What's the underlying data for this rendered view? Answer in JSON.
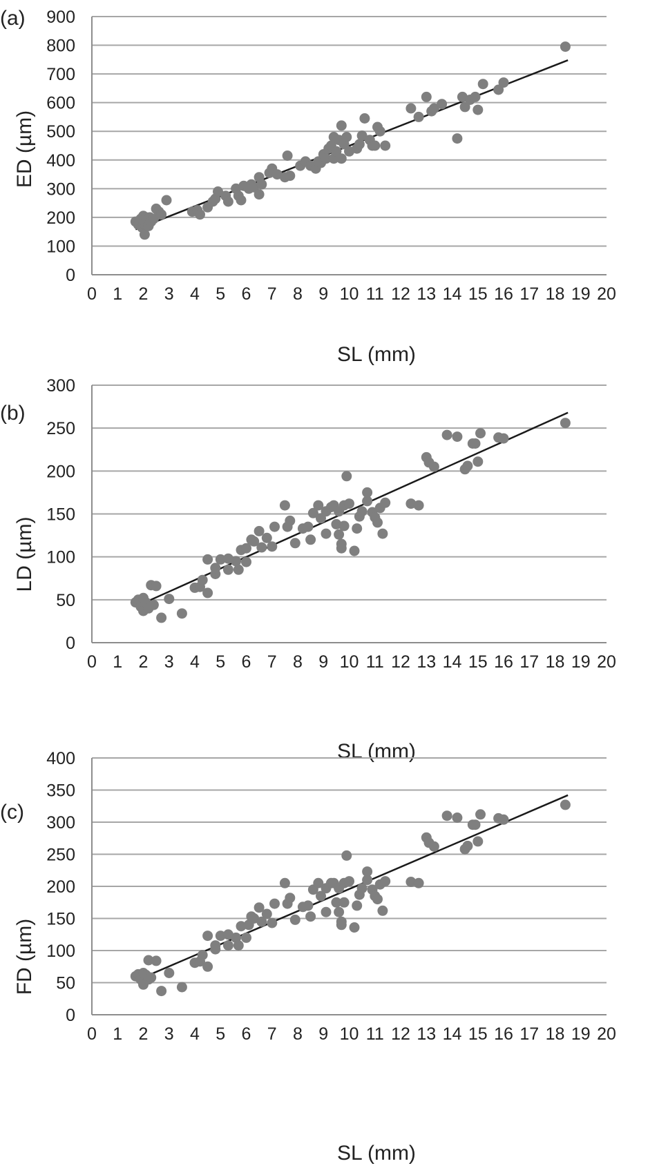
{
  "chart_data": [
    {
      "type": "scatter",
      "panel_label": "(a)",
      "xlabel": "SL (mm)",
      "ylabel": "ED (µm)",
      "xlim": [
        0,
        20
      ],
      "ylim": [
        0,
        900
      ],
      "xticks": [
        0,
        1,
        2,
        3,
        4,
        5,
        6,
        7,
        8,
        9,
        10,
        11,
        12,
        13,
        14,
        15,
        16,
        17,
        18,
        19,
        20
      ],
      "yticks": [
        0,
        100,
        200,
        300,
        400,
        500,
        600,
        700,
        800,
        900
      ],
      "grid": "horizontal",
      "point_color": "#7f7f7f",
      "line_color": "#1a1a1a",
      "trendline": [
        [
          1.7,
          158
        ],
        [
          18.5,
          748
        ]
      ],
      "points": [
        [
          1.7,
          185
        ],
        [
          1.8,
          175
        ],
        [
          1.9,
          195
        ],
        [
          1.95,
          165
        ],
        [
          2.0,
          205
        ],
        [
          2.0,
          180
        ],
        [
          2.05,
          140
        ],
        [
          2.1,
          200
        ],
        [
          2.1,
          175
        ],
        [
          2.15,
          190
        ],
        [
          2.2,
          170
        ],
        [
          2.25,
          200
        ],
        [
          2.3,
          185
        ],
        [
          2.4,
          195
        ],
        [
          2.5,
          230
        ],
        [
          2.6,
          220
        ],
        [
          2.7,
          210
        ],
        [
          2.9,
          260
        ],
        [
          3.9,
          220
        ],
        [
          4.1,
          225
        ],
        [
          4.2,
          210
        ],
        [
          4.5,
          235
        ],
        [
          4.7,
          255
        ],
        [
          4.8,
          265
        ],
        [
          4.9,
          290
        ],
        [
          5.2,
          275
        ],
        [
          5.3,
          255
        ],
        [
          5.6,
          300
        ],
        [
          5.7,
          275
        ],
        [
          5.8,
          260
        ],
        [
          5.9,
          310
        ],
        [
          6.1,
          300
        ],
        [
          6.2,
          315
        ],
        [
          6.3,
          305
        ],
        [
          6.5,
          340
        ],
        [
          6.5,
          280
        ],
        [
          6.6,
          315
        ],
        [
          6.9,
          355
        ],
        [
          7.0,
          370
        ],
        [
          7.2,
          350
        ],
        [
          7.5,
          340
        ],
        [
          7.6,
          415
        ],
        [
          7.7,
          345
        ],
        [
          8.1,
          380
        ],
        [
          8.3,
          395
        ],
        [
          8.5,
          380
        ],
        [
          8.7,
          370
        ],
        [
          8.8,
          395
        ],
        [
          8.9,
          390
        ],
        [
          9.0,
          420
        ],
        [
          9.1,
          405
        ],
        [
          9.2,
          440
        ],
        [
          9.3,
          450
        ],
        [
          9.4,
          480
        ],
        [
          9.4,
          405
        ],
        [
          9.5,
          430
        ],
        [
          9.6,
          470
        ],
        [
          9.7,
          520
        ],
        [
          9.7,
          405
        ],
        [
          9.8,
          455
        ],
        [
          9.9,
          480
        ],
        [
          10.0,
          430
        ],
        [
          10.3,
          440
        ],
        [
          10.4,
          455
        ],
        [
          10.5,
          485
        ],
        [
          10.6,
          545
        ],
        [
          10.8,
          470
        ],
        [
          10.9,
          450
        ],
        [
          11.0,
          450
        ],
        [
          11.1,
          515
        ],
        [
          11.2,
          500
        ],
        [
          11.4,
          450
        ],
        [
          12.4,
          580
        ],
        [
          12.7,
          550
        ],
        [
          13.0,
          620
        ],
        [
          13.2,
          570
        ],
        [
          13.3,
          580
        ],
        [
          13.6,
          595
        ],
        [
          14.2,
          475
        ],
        [
          14.4,
          620
        ],
        [
          14.5,
          585
        ],
        [
          14.7,
          610
        ],
        [
          14.9,
          620
        ],
        [
          15.0,
          575
        ],
        [
          15.2,
          665
        ],
        [
          15.8,
          645
        ],
        [
          16.0,
          670
        ],
        [
          18.4,
          795
        ]
      ]
    },
    {
      "type": "scatter",
      "panel_label": "(b)",
      "xlabel": "SL (mm)",
      "ylabel": "LD (µm)",
      "xlim": [
        0,
        20
      ],
      "ylim": [
        0,
        300
      ],
      "xticks": [
        0,
        1,
        2,
        3,
        4,
        5,
        6,
        7,
        8,
        9,
        10,
        11,
        12,
        13,
        14,
        15,
        16,
        17,
        18,
        19,
        20
      ],
      "yticks": [
        0,
        50,
        100,
        150,
        200,
        250,
        300
      ],
      "grid": "horizontal",
      "point_color": "#7f7f7f",
      "line_color": "#1a1a1a",
      "trendline": [
        [
          1.7,
          42
        ],
        [
          18.5,
          268
        ]
      ],
      "points": [
        [
          1.7,
          47
        ],
        [
          1.8,
          50
        ],
        [
          1.9,
          42
        ],
        [
          2.0,
          52
        ],
        [
          2.0,
          37
        ],
        [
          2.1,
          47
        ],
        [
          2.2,
          40
        ],
        [
          2.3,
          67
        ],
        [
          2.4,
          44
        ],
        [
          2.5,
          66
        ],
        [
          2.7,
          29
        ],
        [
          3.0,
          51
        ],
        [
          3.5,
          34
        ],
        [
          4.0,
          64
        ],
        [
          4.2,
          65
        ],
        [
          4.3,
          73
        ],
        [
          4.5,
          97
        ],
        [
          4.5,
          58
        ],
        [
          4.8,
          80
        ],
        [
          4.8,
          87
        ],
        [
          5.0,
          97
        ],
        [
          5.3,
          98
        ],
        [
          5.3,
          85
        ],
        [
          5.6,
          95
        ],
        [
          5.7,
          85
        ],
        [
          5.8,
          108
        ],
        [
          6.0,
          94
        ],
        [
          6.0,
          110
        ],
        [
          6.2,
          120
        ],
        [
          6.3,
          118
        ],
        [
          6.5,
          130
        ],
        [
          6.6,
          111
        ],
        [
          6.8,
          122
        ],
        [
          7.0,
          112
        ],
        [
          7.1,
          135
        ],
        [
          7.5,
          160
        ],
        [
          7.6,
          135
        ],
        [
          7.7,
          142
        ],
        [
          7.9,
          116
        ],
        [
          8.2,
          133
        ],
        [
          8.4,
          135
        ],
        [
          8.5,
          120
        ],
        [
          8.6,
          151
        ],
        [
          8.8,
          160
        ],
        [
          8.9,
          145
        ],
        [
          9.1,
          153
        ],
        [
          9.1,
          127
        ],
        [
          9.3,
          158
        ],
        [
          9.4,
          160
        ],
        [
          9.5,
          138
        ],
        [
          9.6,
          126
        ],
        [
          9.6,
          153
        ],
        [
          9.7,
          115
        ],
        [
          9.7,
          110
        ],
        [
          9.8,
          136
        ],
        [
          9.8,
          160
        ],
        [
          9.9,
          194
        ],
        [
          10.0,
          162
        ],
        [
          10.2,
          107
        ],
        [
          10.3,
          133
        ],
        [
          10.4,
          147
        ],
        [
          10.5,
          153
        ],
        [
          10.7,
          165
        ],
        [
          10.7,
          175
        ],
        [
          10.9,
          152
        ],
        [
          11.0,
          146
        ],
        [
          11.1,
          140
        ],
        [
          11.2,
          157
        ],
        [
          11.3,
          127
        ],
        [
          11.4,
          163
        ],
        [
          12.4,
          162
        ],
        [
          12.7,
          160
        ],
        [
          13.0,
          216
        ],
        [
          13.1,
          210
        ],
        [
          13.3,
          205
        ],
        [
          13.8,
          242
        ],
        [
          14.2,
          240
        ],
        [
          14.5,
          202
        ],
        [
          14.6,
          206
        ],
        [
          14.8,
          232
        ],
        [
          14.9,
          232
        ],
        [
          15.0,
          211
        ],
        [
          15.1,
          244
        ],
        [
          15.8,
          239
        ],
        [
          16.0,
          238
        ],
        [
          18.4,
          256
        ]
      ]
    },
    {
      "type": "scatter",
      "panel_label": "(c)",
      "xlabel": "SL (mm)",
      "ylabel": "FD (µm)",
      "xlim": [
        0,
        20
      ],
      "ylim": [
        0,
        400
      ],
      "xticks": [
        0,
        1,
        2,
        3,
        4,
        5,
        6,
        7,
        8,
        9,
        10,
        11,
        12,
        13,
        14,
        15,
        16,
        17,
        18,
        19,
        20
      ],
      "yticks": [
        0,
        50,
        100,
        150,
        200,
        250,
        300,
        350,
        400
      ],
      "grid": "horizontal",
      "point_color": "#7f7f7f",
      "line_color": "#1a1a1a",
      "trendline": [
        [
          1.7,
          53
        ],
        [
          18.5,
          342
        ]
      ],
      "points": [
        [
          1.7,
          60
        ],
        [
          1.8,
          63
        ],
        [
          1.9,
          55
        ],
        [
          2.0,
          65
        ],
        [
          2.0,
          47
        ],
        [
          2.1,
          62
        ],
        [
          2.2,
          55
        ],
        [
          2.2,
          85
        ],
        [
          2.3,
          58
        ],
        [
          2.5,
          84
        ],
        [
          2.7,
          37
        ],
        [
          3.0,
          65
        ],
        [
          3.5,
          43
        ],
        [
          4.0,
          81
        ],
        [
          4.2,
          83
        ],
        [
          4.3,
          93
        ],
        [
          4.5,
          123
        ],
        [
          4.5,
          75
        ],
        [
          4.8,
          102
        ],
        [
          4.8,
          108
        ],
        [
          5.0,
          123
        ],
        [
          5.3,
          125
        ],
        [
          5.3,
          108
        ],
        [
          5.6,
          120
        ],
        [
          5.7,
          108
        ],
        [
          5.8,
          138
        ],
        [
          6.0,
          120
        ],
        [
          6.1,
          140
        ],
        [
          6.2,
          153
        ],
        [
          6.3,
          150
        ],
        [
          6.5,
          167
        ],
        [
          6.6,
          145
        ],
        [
          6.8,
          157
        ],
        [
          7.0,
          143
        ],
        [
          7.1,
          173
        ],
        [
          7.5,
          205
        ],
        [
          7.6,
          173
        ],
        [
          7.7,
          182
        ],
        [
          7.9,
          148
        ],
        [
          8.2,
          168
        ],
        [
          8.4,
          170
        ],
        [
          8.5,
          153
        ],
        [
          8.6,
          195
        ],
        [
          8.8,
          205
        ],
        [
          8.9,
          185
        ],
        [
          9.1,
          197
        ],
        [
          9.1,
          160
        ],
        [
          9.3,
          205
        ],
        [
          9.4,
          205
        ],
        [
          9.5,
          175
        ],
        [
          9.6,
          160
        ],
        [
          9.6,
          197
        ],
        [
          9.7,
          145
        ],
        [
          9.7,
          140
        ],
        [
          9.8,
          175
        ],
        [
          9.8,
          205
        ],
        [
          9.9,
          248
        ],
        [
          10.0,
          208
        ],
        [
          10.2,
          136
        ],
        [
          10.3,
          170
        ],
        [
          10.4,
          187
        ],
        [
          10.5,
          197
        ],
        [
          10.7,
          210
        ],
        [
          10.7,
          223
        ],
        [
          10.9,
          195
        ],
        [
          11.0,
          185
        ],
        [
          11.1,
          180
        ],
        [
          11.2,
          203
        ],
        [
          11.3,
          162
        ],
        [
          11.4,
          208
        ],
        [
          12.4,
          207
        ],
        [
          12.7,
          205
        ],
        [
          13.0,
          276
        ],
        [
          13.1,
          268
        ],
        [
          13.3,
          262
        ],
        [
          13.8,
          310
        ],
        [
          14.2,
          307
        ],
        [
          14.5,
          258
        ],
        [
          14.6,
          263
        ],
        [
          14.8,
          296
        ],
        [
          14.9,
          296
        ],
        [
          15.0,
          270
        ],
        [
          15.1,
          312
        ],
        [
          15.8,
          306
        ],
        [
          16.0,
          304
        ],
        [
          18.4,
          327
        ]
      ]
    }
  ]
}
